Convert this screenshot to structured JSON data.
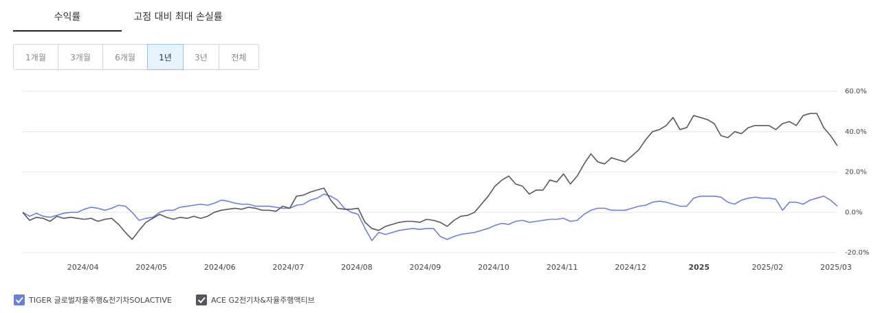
{
  "tabs": [
    "수익률",
    "고점 대비 최대 손실률"
  ],
  "periods": [
    "1개월",
    "3개월",
    "6개월",
    "1년",
    "3년",
    "전체"
  ],
  "chart_data": {
    "type": "line",
    "categories": [
      null,
      null,
      null,
      null,
      null,
      null,
      null,
      null,
      null,
      "2024/04",
      null,
      null,
      null,
      null,
      null,
      null,
      null,
      null,
      null,
      "2024/05",
      null,
      null,
      null,
      null,
      null,
      null,
      null,
      null,
      null,
      "2024/06",
      null,
      null,
      null,
      null,
      null,
      null,
      null,
      null,
      null,
      "2024/07",
      null,
      null,
      null,
      null,
      null,
      null,
      null,
      null,
      null,
      "2024/08",
      null,
      null,
      null,
      null,
      null,
      null,
      null,
      null,
      null,
      "2024/09",
      null,
      null,
      null,
      null,
      null,
      null,
      null,
      null,
      null,
      "2024/10",
      null,
      null,
      null,
      null,
      null,
      null,
      null,
      null,
      null,
      "2024/11",
      null,
      null,
      null,
      null,
      null,
      null,
      null,
      null,
      null,
      "2024/12",
      null,
      null,
      null,
      null,
      null,
      null,
      null,
      null,
      null,
      "2025",
      null,
      null,
      null,
      null,
      null,
      null,
      null,
      null,
      null,
      "2025/02",
      null,
      null,
      null,
      null,
      null,
      null,
      null,
      null,
      null,
      "2025/03"
    ],
    "series": [
      {
        "name": "TIGER 글로벌자율주행&전기차SOLACTIVE",
        "color": "#6b7fe0",
        "values": [
          0,
          -2,
          -0.5,
          -2,
          -2.5,
          -1.5,
          -0.5,
          0,
          0,
          1.5,
          2.5,
          2,
          1,
          2,
          3.5,
          3,
          0,
          -4,
          -3,
          -2.5,
          0,
          1,
          1,
          2.5,
          3,
          3.5,
          4,
          3.5,
          4.5,
          6,
          5.5,
          4.5,
          4,
          4,
          3,
          3,
          3,
          2.5,
          2,
          2,
          3.5,
          4,
          6,
          7,
          9,
          8,
          6,
          2,
          0,
          -1,
          -8,
          -14,
          -10,
          -11,
          -10,
          -9,
          -8.5,
          -8,
          -8.5,
          -8,
          -8,
          -12,
          -13.5,
          -12,
          -11,
          -10.5,
          -10,
          -9,
          -8,
          -6.5,
          -5.5,
          -6,
          -4.5,
          -4,
          -5,
          -4.5,
          -4,
          -3.5,
          -3.5,
          -3,
          -4.5,
          -4,
          -1,
          1,
          2,
          2,
          1,
          1,
          1,
          2,
          3,
          3.5,
          5,
          5.5,
          5,
          4,
          3,
          3,
          7,
          8,
          8,
          8,
          7.5,
          5,
          4,
          6,
          7,
          7.5,
          7,
          7,
          6.5,
          1,
          5,
          5,
          4,
          6,
          7,
          8,
          6,
          3
        ]
      },
      {
        "name": "ACE G2전기차&자율주행액티브",
        "color": "#55565e",
        "values": [
          0,
          -4,
          -2.5,
          -3,
          -4.5,
          -2,
          -3,
          -2.5,
          -3,
          -3.5,
          -3,
          -4.5,
          -3.5,
          -3,
          -6,
          -10,
          -13.5,
          -9,
          -5,
          -3,
          -1,
          -2.5,
          -3.5,
          -2.5,
          -3,
          -2,
          -3,
          -2,
          0,
          1,
          1.5,
          2,
          1.5,
          2.5,
          2,
          1,
          1,
          0.5,
          3,
          2,
          8,
          8.5,
          10,
          11,
          12,
          6,
          2,
          1.5,
          1.5,
          2,
          -5,
          -8,
          -9,
          -7,
          -6,
          -5,
          -4.5,
          -4.5,
          -5,
          -3.5,
          -4,
          -5,
          -7,
          -4,
          -2,
          -1.5,
          0,
          4,
          8,
          13,
          16,
          18,
          14,
          13,
          9,
          11,
          11,
          16,
          15,
          19,
          14,
          18,
          24,
          29,
          25,
          24,
          27,
          26,
          25,
          28,
          31,
          36,
          40,
          41,
          43,
          47,
          41,
          42,
          48,
          47,
          46,
          44,
          38,
          37,
          40,
          39,
          42,
          43,
          43,
          43,
          41,
          44,
          45,
          43,
          48,
          49,
          49,
          42,
          38,
          33
        ]
      }
    ],
    "ylim": [
      -20,
      60
    ],
    "yticks": [
      {
        "value": 60,
        "label": "60.0%"
      },
      {
        "value": 40,
        "label": "40.0%"
      },
      {
        "value": 20,
        "label": "20.0%"
      },
      {
        "value": 0,
        "label": "0.0%"
      },
      {
        "value": -20,
        "label": "-20.0%"
      }
    ],
    "grid": true
  }
}
